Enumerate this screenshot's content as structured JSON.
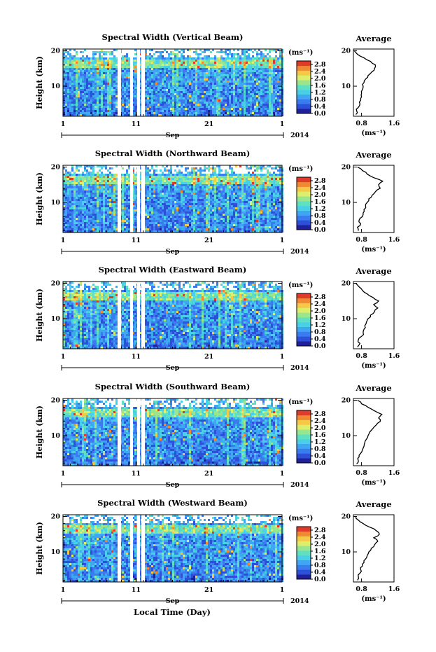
{
  "colors": {
    "scale": [
      "#20209a",
      "#2c50d8",
      "#3a7cf0",
      "#3fa6f2",
      "#4ad0e6",
      "#5fe0c0",
      "#9ae68e",
      "#dcee6a",
      "#f6c848",
      "#f08a32",
      "#e03a2a"
    ],
    "axis": "#000000",
    "line": "#000000"
  },
  "common": {
    "xlabel": "Local Time (Day)",
    "month": "Sep",
    "year": "2014",
    "x_ticks": [
      "1",
      "11",
      "21",
      "1"
    ],
    "y_ticks": [
      "10",
      "20"
    ],
    "ylabel": "Height (km)",
    "colorbar_unit": "(ms⁻¹)",
    "colorbar_ticks": [
      "0.0",
      "0.4",
      "0.8",
      "1.2",
      "1.6",
      "2.0",
      "2.4",
      "2.8"
    ],
    "avg_title": "Average",
    "avg_y_ticks": [
      "10",
      "20"
    ],
    "avg_x_ticks": [
      "0.8",
      "1.6"
    ],
    "avg_xlabel": "(ms⁻¹)"
  },
  "chart_data": [
    {
      "type": "heatmap",
      "title": "Spectral Width (Vertical Beam)",
      "xlim_days": [
        1,
        31
      ],
      "ylim_km": [
        1.5,
        20.5
      ],
      "zlim": [
        0.0,
        3.0
      ],
      "profile": {
        "xlim": [
          0.6,
          1.6
        ],
        "heights_km": [
          2,
          3,
          4,
          5,
          6,
          7,
          8,
          9,
          10,
          11,
          12,
          13,
          14,
          15,
          16,
          17,
          18,
          19,
          20
        ],
        "values": [
          0.66,
          0.68,
          0.72,
          0.76,
          0.78,
          0.8,
          0.8,
          0.82,
          0.84,
          0.86,
          0.9,
          0.96,
          1.05,
          1.12,
          1.14,
          1.02,
          0.86,
          0.7,
          0.62
        ]
      }
    },
    {
      "type": "heatmap",
      "title": "Spectral Width (Northward Beam)",
      "xlim_days": [
        1,
        31
      ],
      "ylim_km": [
        1.5,
        20.5
      ],
      "zlim": [
        0.0,
        3.0
      ],
      "profile": {
        "xlim": [
          0.6,
          1.6
        ],
        "heights_km": [
          2,
          3,
          4,
          5,
          6,
          7,
          8,
          9,
          10,
          11,
          12,
          13,
          14,
          15,
          16,
          17,
          18,
          19,
          20
        ],
        "values": [
          0.72,
          0.7,
          0.78,
          0.74,
          0.82,
          0.84,
          0.86,
          0.9,
          0.94,
          0.98,
          1.06,
          1.14,
          1.26,
          1.22,
          1.32,
          1.1,
          0.94,
          0.82,
          0.7
        ]
      }
    },
    {
      "type": "heatmap",
      "title": "Spectral Width (Eastward Beam)",
      "xlim_days": [
        1,
        31
      ],
      "ylim_km": [
        1.5,
        20.5
      ],
      "zlim": [
        0.0,
        3.0
      ],
      "profile": {
        "xlim": [
          0.6,
          1.6
        ],
        "heights_km": [
          2,
          3,
          4,
          5,
          6,
          7,
          8,
          9,
          10,
          11,
          12,
          13,
          14,
          15,
          16,
          17,
          18,
          19,
          20
        ],
        "values": [
          0.7,
          0.76,
          0.72,
          0.8,
          0.84,
          0.86,
          0.88,
          0.92,
          0.96,
          1.02,
          1.12,
          1.2,
          1.1,
          1.22,
          1.08,
          0.94,
          0.82,
          0.74,
          0.66
        ]
      }
    },
    {
      "type": "heatmap",
      "title": "Spectral Width (Southward Beam)",
      "xlim_days": [
        1,
        31
      ],
      "ylim_km": [
        1.5,
        20.5
      ],
      "zlim": [
        0.0,
        3.0
      ],
      "profile": {
        "xlim": [
          0.6,
          1.6
        ],
        "heights_km": [
          2,
          3,
          4,
          5,
          6,
          7,
          8,
          9,
          10,
          11,
          12,
          13,
          14,
          15,
          16,
          17,
          18,
          19,
          20
        ],
        "values": [
          0.68,
          0.72,
          0.74,
          0.78,
          0.82,
          0.86,
          0.88,
          0.92,
          0.96,
          1.0,
          1.08,
          1.16,
          1.26,
          1.22,
          1.3,
          1.12,
          0.96,
          0.8,
          0.7
        ]
      }
    },
    {
      "type": "heatmap",
      "title": "Spectral Width (Westward Beam)",
      "xlim_days": [
        1,
        31
      ],
      "ylim_km": [
        1.5,
        20.5
      ],
      "zlim": [
        0.0,
        3.0
      ],
      "profile": {
        "xlim": [
          0.6,
          1.6
        ],
        "heights_km": [
          2,
          3,
          4,
          5,
          6,
          7,
          8,
          9,
          10,
          11,
          12,
          13,
          14,
          15,
          16,
          17,
          18,
          19,
          20
        ],
        "values": [
          0.7,
          0.72,
          0.76,
          0.78,
          0.82,
          0.86,
          0.9,
          0.94,
          0.98,
          1.04,
          1.12,
          1.2,
          1.1,
          1.24,
          1.16,
          1.0,
          0.84,
          0.72,
          0.66
        ]
      }
    }
  ]
}
